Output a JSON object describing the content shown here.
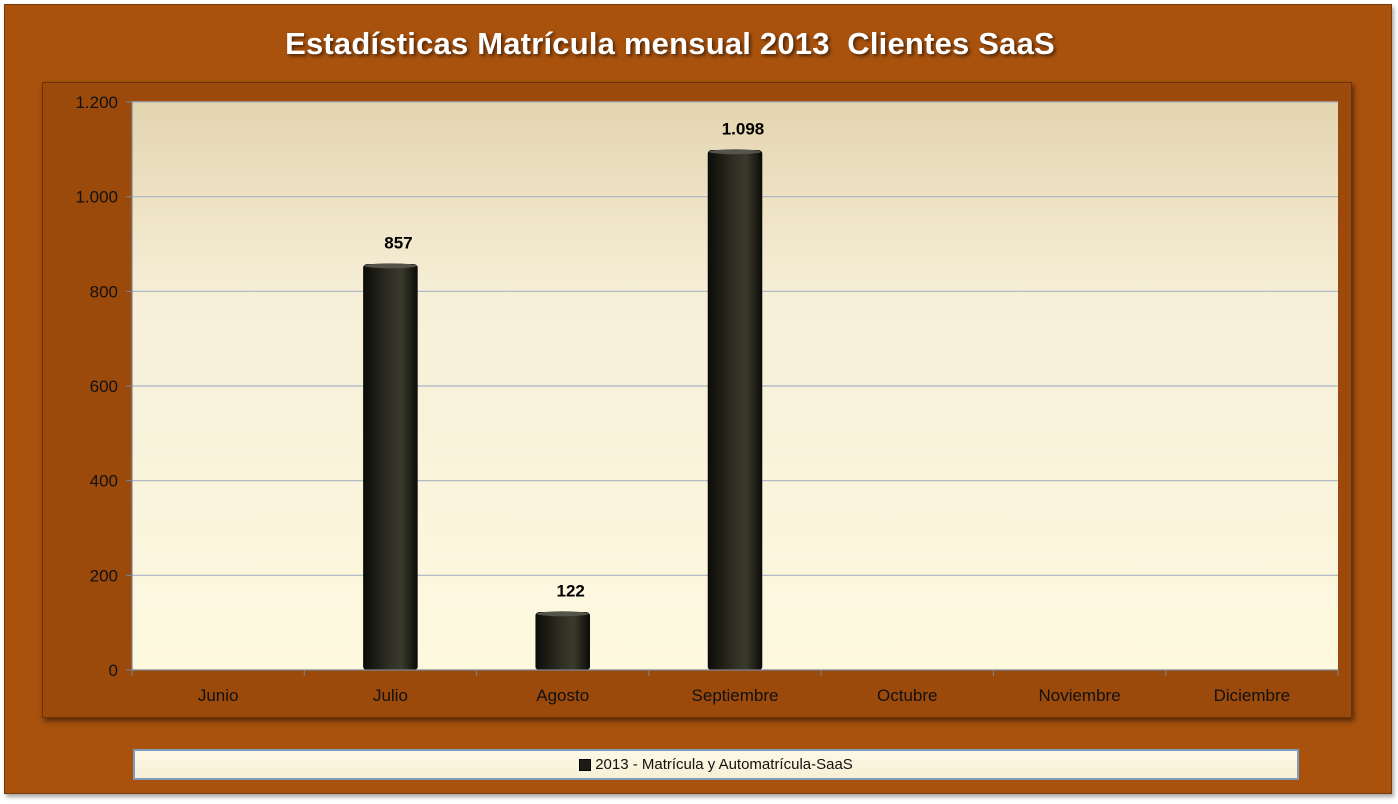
{
  "chart_data": {
    "type": "bar",
    "title": "Estadísticas Matrícula mensual 2013  Clientes SaaS",
    "categories": [
      "Junio",
      "Julio",
      "Agosto",
      "Septiembre",
      "Octubre",
      "Noviembre",
      "Diciembre"
    ],
    "series": [
      {
        "name": "2013 - Matrícula y Automatrícula-SaaS",
        "values": [
          null,
          857,
          122,
          1098,
          null,
          null,
          null
        ],
        "labels": [
          "",
          "857",
          "122",
          "1.098",
          "",
          "",
          ""
        ]
      }
    ],
    "yticks": [
      0,
      200,
      400,
      600,
      800,
      1000,
      1200
    ],
    "ytick_labels": [
      "0",
      "200",
      "400",
      "600",
      "800",
      "1.000",
      "1.200"
    ],
    "ylim": [
      0,
      1200
    ],
    "grid": true,
    "legend_position": "bottom",
    "colors": {
      "frame": "#A8520E",
      "bar": "#1c1c14",
      "plot_top": "#e6d8b6",
      "plot_bottom": "#fdf8dc",
      "gridline": "#a9b4c2"
    }
  }
}
